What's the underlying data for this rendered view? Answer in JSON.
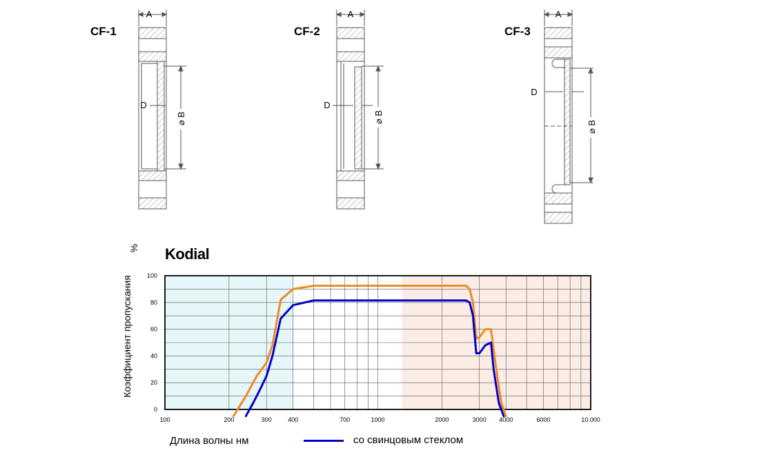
{
  "drawings": [
    {
      "title": "CF-1",
      "dim_a": "A",
      "dim_d": "D",
      "dim_b": "⌀ B"
    },
    {
      "title": "CF-2",
      "dim_a": "A",
      "dim_d": "D",
      "dim_b": "⌀ B"
    },
    {
      "title": "CF-3",
      "dim_a": "A",
      "dim_d": "D",
      "dim_b": "⌀ B"
    }
  ],
  "chart_data": {
    "type": "line",
    "title": "Kodial",
    "xlabel": "Длина волны нм",
    "ylabel": "Коэффициент пропускания",
    "yunit": "%",
    "xscale": "log",
    "xlim": [
      100,
      10000
    ],
    "ylim": [
      0,
      100
    ],
    "x_tick_labels": [
      "100",
      "200",
      "300",
      "400",
      "700",
      "1000",
      "2000",
      "3000",
      "4000",
      "6000",
      "10.000"
    ],
    "x_tick_values": [
      100,
      200,
      300,
      400,
      700,
      1000,
      2000,
      3000,
      4000,
      6000,
      10000
    ],
    "y_tick_labels": [
      "0",
      "20",
      "40",
      "60",
      "80",
      "100"
    ],
    "grid": true,
    "regions": [
      {
        "from": 100,
        "to": 400,
        "color": "#e6f7f9"
      },
      {
        "from": 1300,
        "to": 10000,
        "color": "#fcece6"
      }
    ],
    "series": [
      {
        "color": "#ee8a22",
        "x": [
          210,
          240,
          270,
          300,
          320,
          350,
          400,
          500,
          700,
          1000,
          2000,
          2600,
          2700,
          2800,
          2900,
          3000,
          3200,
          3400,
          3600,
          3800,
          4000
        ],
        "y": [
          -5,
          10,
          25,
          35,
          48,
          82,
          90,
          92.5,
          92.5,
          92.5,
          92.5,
          92.5,
          90,
          80,
          53,
          54,
          60,
          60,
          30,
          5,
          -5
        ]
      },
      {
        "name": "со свинцовым стеклом",
        "color": "#0000cc",
        "x": [
          240,
          260,
          280,
          300,
          320,
          350,
          400,
          500,
          700,
          1000,
          2000,
          2600,
          2700,
          2800,
          2900,
          3000,
          3200,
          3400,
          3500,
          3700,
          3900
        ],
        "y": [
          -5,
          5,
          15,
          25,
          40,
          68,
          78,
          81.5,
          81.5,
          81.5,
          81.5,
          81.5,
          80,
          70,
          42,
          42,
          48,
          50,
          30,
          5,
          -5
        ]
      }
    ],
    "legend": "bottom"
  }
}
